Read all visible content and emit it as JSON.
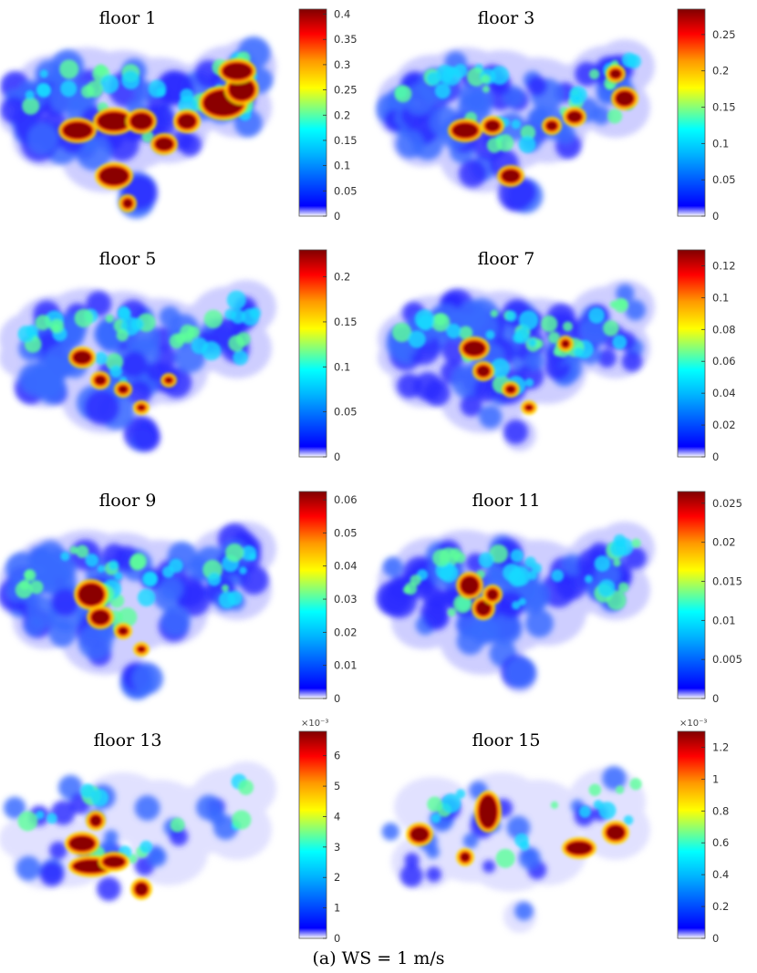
{
  "caption": "(a) WS = 1 m/s",
  "colormap": [
    "#ffffff",
    "#0000ff",
    "#00b4ff",
    "#00ffff",
    "#ffff00",
    "#ff9900",
    "#ff0000",
    "#800000"
  ],
  "chart_data": [
    {
      "type": "heatmap",
      "title": "floor 1",
      "clim": [
        0,
        0.41
      ],
      "exponent": "",
      "ticks": [
        0,
        0.05,
        0.1,
        0.15,
        0.2,
        0.25,
        0.3,
        0.35,
        0.4
      ],
      "tick_labels": [
        "0",
        "0.05",
        "0.1",
        "0.15",
        "0.2",
        "0.25",
        "0.3",
        "0.35",
        "0.4"
      ]
    },
    {
      "type": "heatmap",
      "title": "floor 3",
      "clim": [
        0,
        0.285
      ],
      "exponent": "",
      "ticks": [
        0,
        0.05,
        0.1,
        0.15,
        0.2,
        0.25
      ],
      "tick_labels": [
        "0",
        "0.05",
        "0.1",
        "0.15",
        "0.2",
        "0.25"
      ]
    },
    {
      "type": "heatmap",
      "title": "floor 5",
      "clim": [
        0,
        0.23
      ],
      "exponent": "",
      "ticks": [
        0,
        0.05,
        0.1,
        0.15,
        0.2
      ],
      "tick_labels": [
        "0",
        "0.05",
        "0.1",
        "0.15",
        "0.2"
      ]
    },
    {
      "type": "heatmap",
      "title": "floor 7",
      "clim": [
        0,
        0.13
      ],
      "exponent": "",
      "ticks": [
        0,
        0.02,
        0.04,
        0.06,
        0.08,
        0.1,
        0.12
      ],
      "tick_labels": [
        "0",
        "0.02",
        "0.04",
        "0.06",
        "0.08",
        "0.1",
        "0.12"
      ]
    },
    {
      "type": "heatmap",
      "title": "floor 9",
      "clim": [
        0,
        0.0625
      ],
      "exponent": "",
      "ticks": [
        0,
        0.01,
        0.02,
        0.03,
        0.04,
        0.05,
        0.06
      ],
      "tick_labels": [
        "0",
        "0.01",
        "0.02",
        "0.03",
        "0.04",
        "0.05",
        "0.06"
      ]
    },
    {
      "type": "heatmap",
      "title": "floor 11",
      "clim": [
        0,
        0.0265
      ],
      "exponent": "",
      "ticks": [
        0,
        0.005,
        0.01,
        0.015,
        0.02,
        0.025
      ],
      "tick_labels": [
        "0",
        "0.005",
        "0.01",
        "0.015",
        "0.02",
        "0.025"
      ]
    },
    {
      "type": "heatmap",
      "title": "floor 13",
      "clim": [
        0,
        6.8
      ],
      "exponent": "×10⁻³",
      "ticks": [
        0,
        1,
        2,
        3,
        4,
        5,
        6
      ],
      "tick_labels": [
        "0",
        "1",
        "2",
        "3",
        "4",
        "5",
        "6"
      ]
    },
    {
      "type": "heatmap",
      "title": "floor 15",
      "clim": [
        0,
        1.3
      ],
      "exponent": "×10⁻³",
      "ticks": [
        0,
        0.2,
        0.4,
        0.6,
        0.8,
        1,
        1.2
      ],
      "tick_labels": [
        "0",
        "0.2",
        "0.4",
        "0.6",
        "0.8",
        "1",
        "1.2"
      ]
    }
  ]
}
